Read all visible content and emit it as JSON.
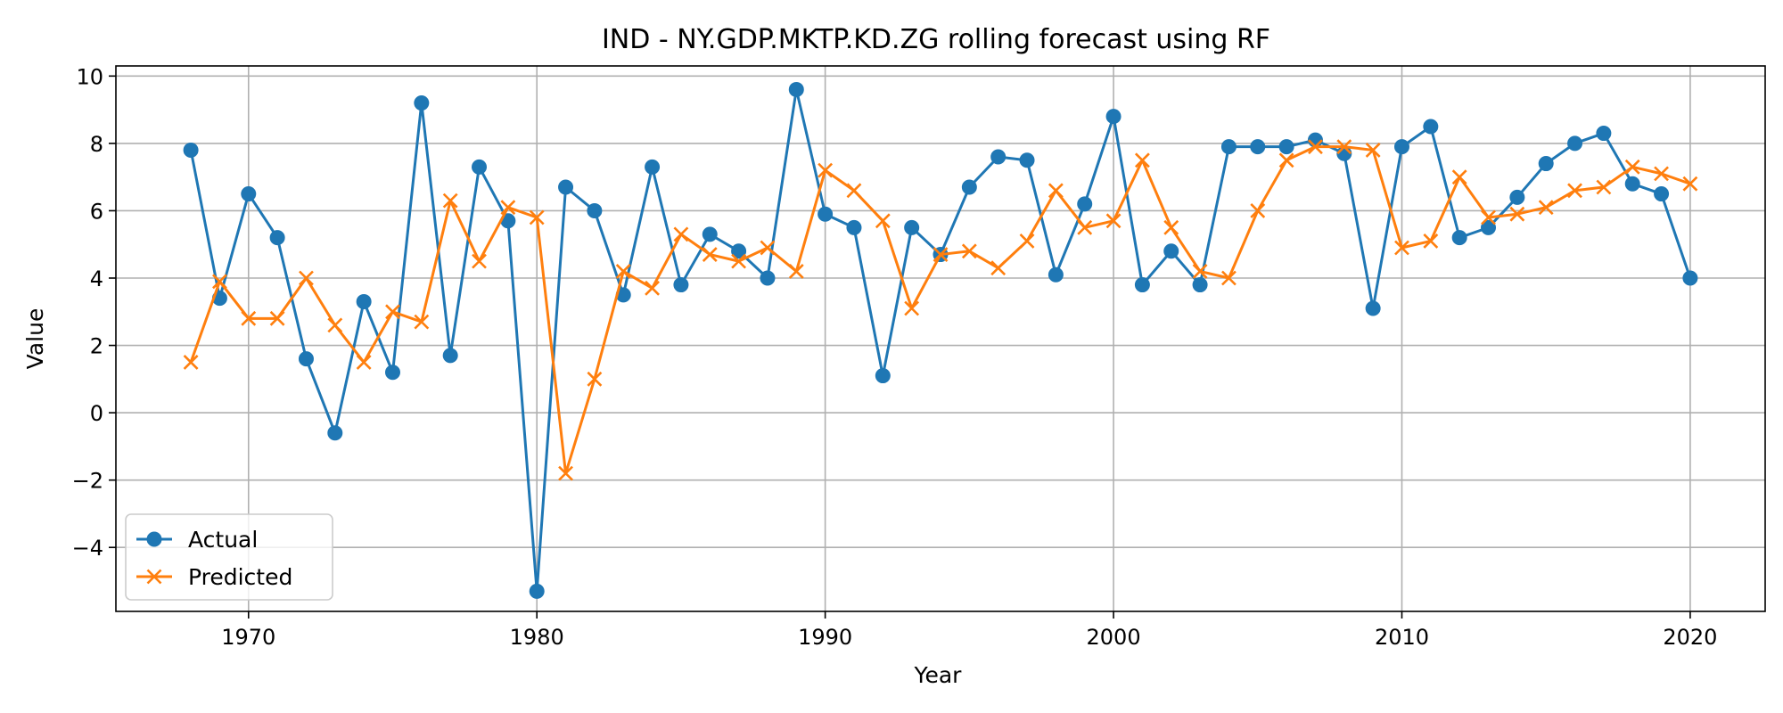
{
  "chart_data": {
    "type": "line",
    "title": "IND - NY.GDP.MKTP.KD.ZG rolling forecast using RF",
    "xlabel": "Year",
    "ylabel": "Value",
    "xlim": [
      1965.4,
      2022.6
    ],
    "ylim": [
      -5.9,
      10.3
    ],
    "xticks": [
      1970,
      1980,
      1990,
      2000,
      2010,
      2020
    ],
    "yticks": [
      -4,
      -2,
      0,
      2,
      4,
      6,
      8,
      10
    ],
    "xtick_labels": [
      "1970",
      "1980",
      "1990",
      "2000",
      "2010",
      "2020"
    ],
    "ytick_labels": [
      "−4",
      "−2",
      "0",
      "2",
      "4",
      "6",
      "8",
      "10"
    ],
    "grid": true,
    "legend_position": "lower-left",
    "x": [
      1968,
      1969,
      1970,
      1971,
      1972,
      1973,
      1974,
      1975,
      1976,
      1977,
      1978,
      1979,
      1980,
      1981,
      1982,
      1983,
      1984,
      1985,
      1986,
      1987,
      1988,
      1989,
      1990,
      1991,
      1992,
      1993,
      1994,
      1995,
      1996,
      1997,
      1998,
      1999,
      2000,
      2001,
      2002,
      2003,
      2004,
      2005,
      2006,
      2007,
      2008,
      2009,
      2010,
      2011,
      2012,
      2013,
      2014,
      2015,
      2016,
      2017,
      2018,
      2019,
      2020
    ],
    "series": [
      {
        "name": "Actual",
        "color": "#1f77b4",
        "marker": "circle",
        "values": [
          7.8,
          3.4,
          6.5,
          5.2,
          1.6,
          -0.6,
          3.3,
          1.2,
          9.2,
          1.7,
          7.3,
          5.7,
          -5.3,
          6.7,
          6.0,
          3.5,
          7.3,
          3.8,
          5.3,
          4.8,
          4.0,
          9.6,
          5.9,
          5.5,
          1.1,
          5.5,
          4.7,
          6.7,
          7.6,
          7.5,
          4.1,
          6.2,
          8.8,
          3.8,
          4.8,
          3.8,
          7.9,
          7.9,
          7.9,
          8.1,
          7.7,
          3.1,
          7.9,
          8.5,
          5.2,
          5.5,
          6.4,
          7.4,
          8.0,
          8.3,
          6.8,
          6.5,
          4.0
        ]
      },
      {
        "name": "Predicted",
        "color": "#ff7f0e",
        "marker": "x",
        "values": [
          1.5,
          3.9,
          2.8,
          2.8,
          4.0,
          2.6,
          1.5,
          3.0,
          2.7,
          6.3,
          4.5,
          6.1,
          5.8,
          -1.8,
          1.0,
          4.2,
          3.7,
          5.3,
          4.7,
          4.5,
          4.9,
          4.2,
          7.2,
          6.6,
          5.7,
          3.1,
          4.7,
          4.8,
          4.3,
          5.1,
          6.6,
          5.5,
          5.7,
          7.5,
          5.5,
          4.2,
          4.0,
          6.0,
          7.5,
          7.9,
          7.9,
          7.8,
          4.9,
          5.1,
          7.0,
          5.8,
          5.9,
          6.1,
          6.6,
          6.7,
          7.3,
          7.1,
          6.8
        ]
      }
    ]
  }
}
